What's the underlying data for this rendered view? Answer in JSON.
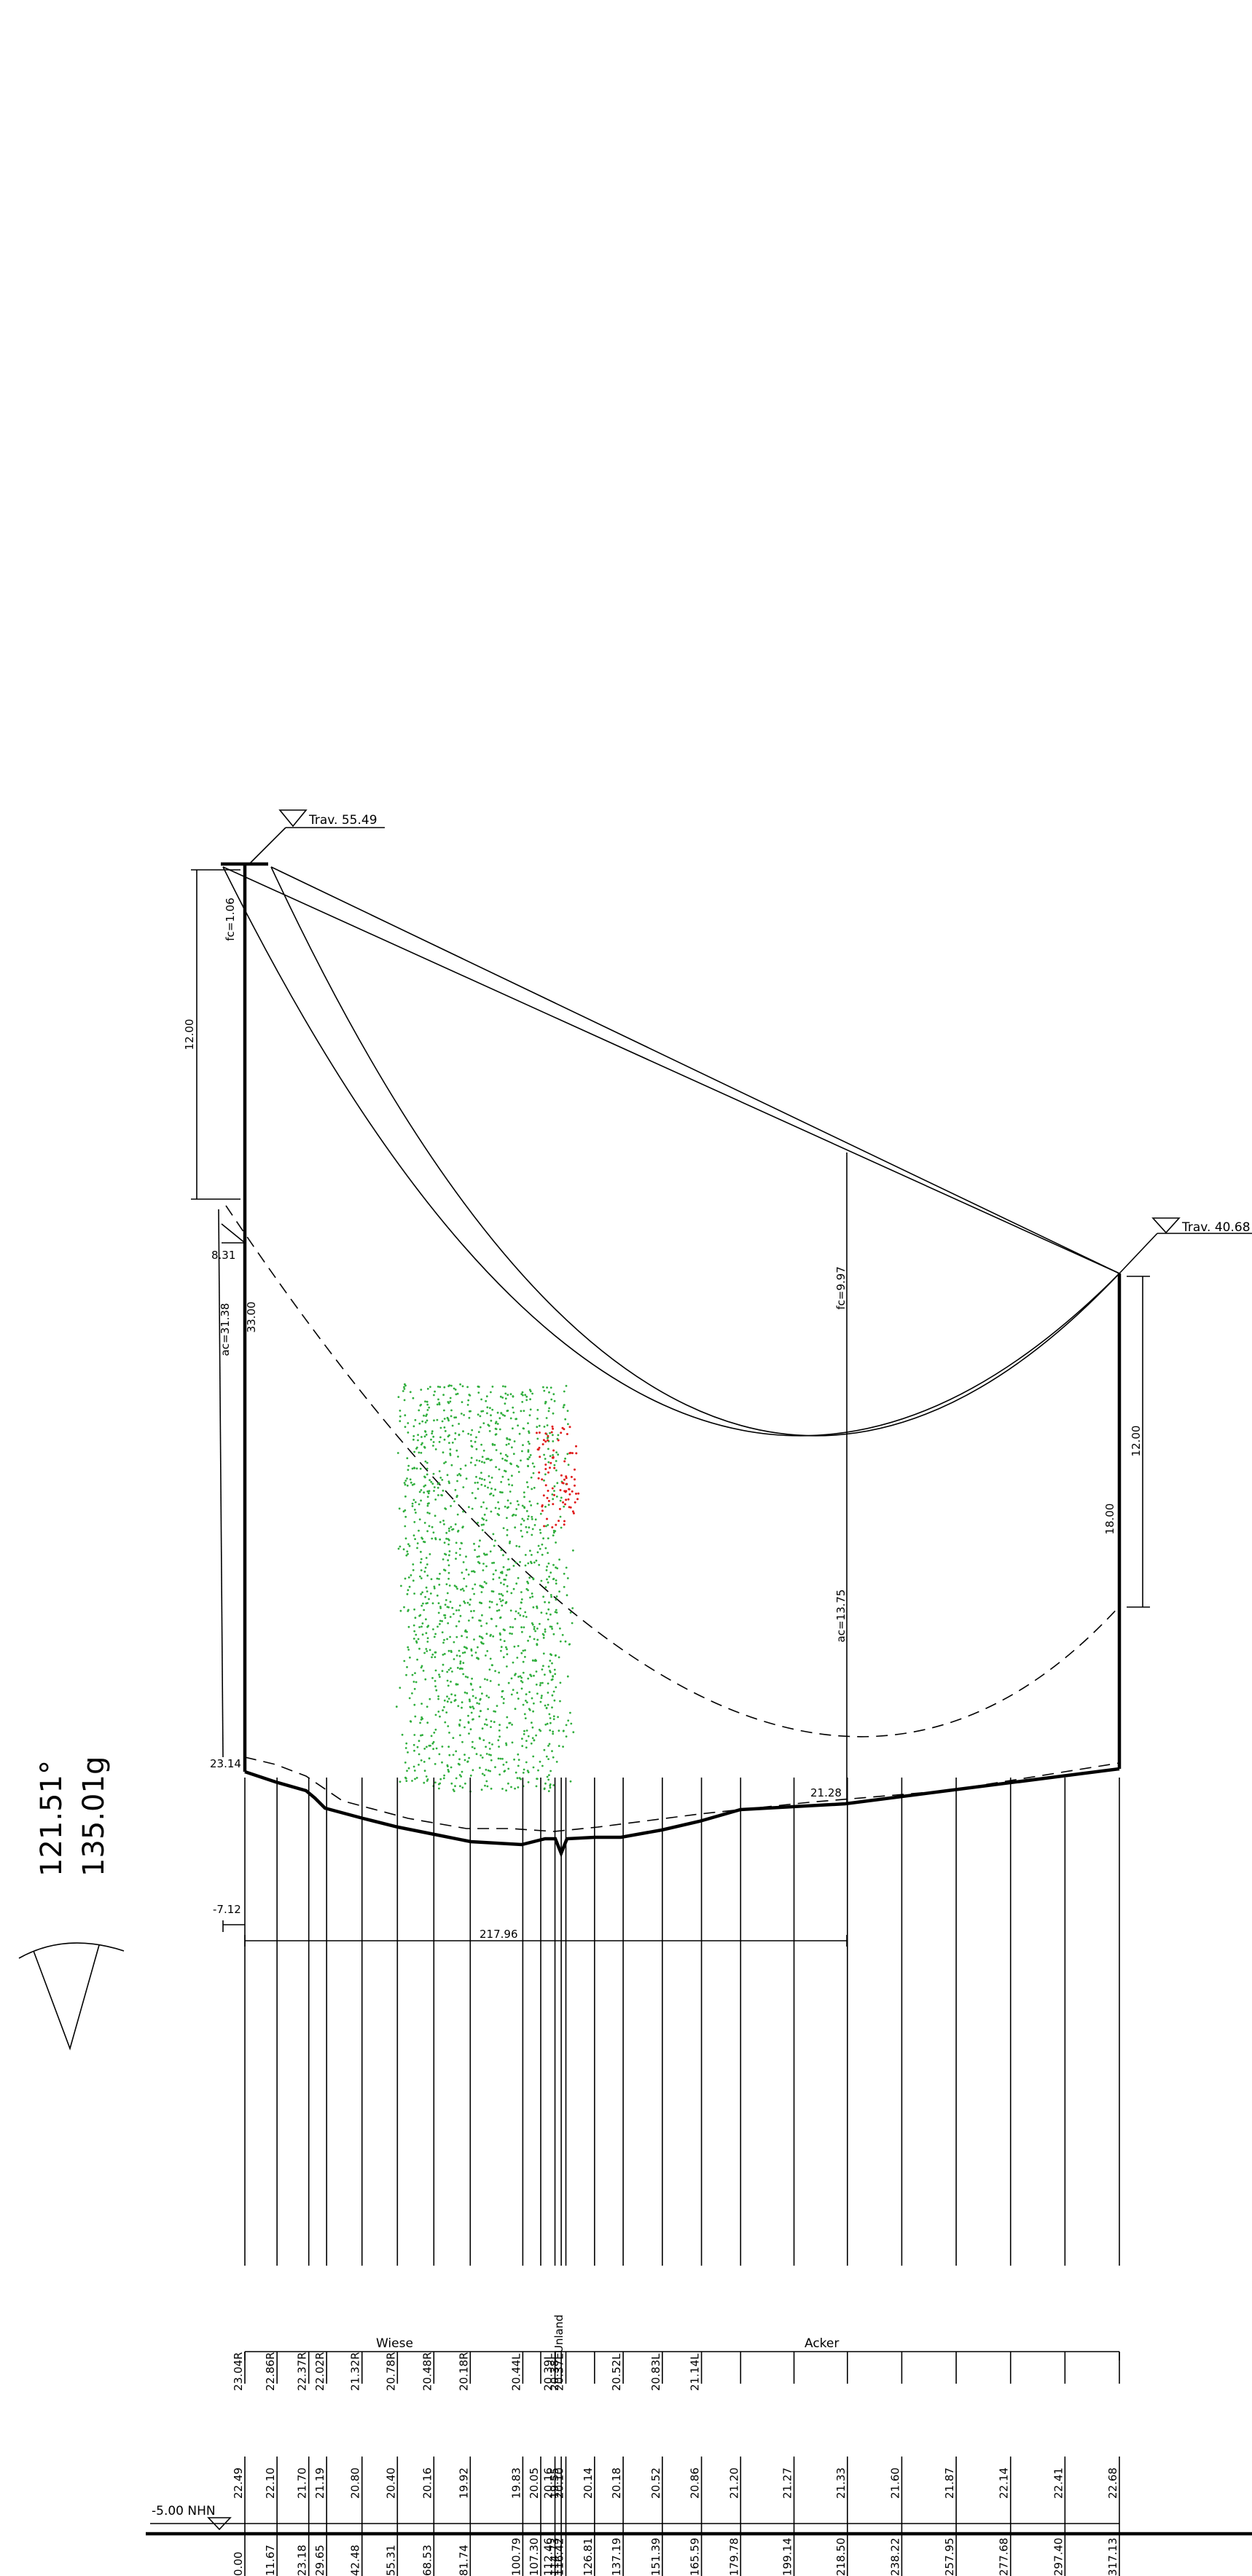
{
  "towers": {
    "left": {
      "label": "Trav. 55.49"
    },
    "right": {
      "label": "Trav. 40.68"
    }
  },
  "dimensions": {
    "left_12": "12.00",
    "fc_left": "fc=1.06",
    "ac_left": "ac=31.38",
    "left_33": "33.00",
    "left_831": "8.31",
    "left_2314": "23.14",
    "fc_mid": "fc=9.97",
    "ac_mid": "ac=13.75",
    "mid_2128": "21.28",
    "right_12": "12.00",
    "right_18": "18.00",
    "offset_neg": "-7.12",
    "span": "217.96"
  },
  "angle": {
    "degrees": "121.51°",
    "gon": "135.01g"
  },
  "sections": [
    {
      "name": "Wiese"
    },
    {
      "name": "Unland"
    },
    {
      "name": "Acker"
    }
  ],
  "datum_label": "-5.00 NHN",
  "stations": [
    {
      "dist": "0.00",
      "height": "22.49",
      "annot": "23.04R"
    },
    {
      "dist": "11.67",
      "height": "22.10",
      "annot": "22.86R"
    },
    {
      "dist": "23.18",
      "height": "21.70",
      "annot": "22.37R"
    },
    {
      "dist": "29.65",
      "height": "21.19",
      "annot": "22.02R"
    },
    {
      "dist": "42.48",
      "height": "20.80",
      "annot": "21.32R"
    },
    {
      "dist": "55.31",
      "height": "20.40",
      "annot": "20.78R"
    },
    {
      "dist": "68.53",
      "height": "20.16",
      "annot": "20.48R"
    },
    {
      "dist": "81.74",
      "height": "19.92",
      "annot": "20.18R"
    },
    {
      "dist": "100.79",
      "height": "19.83",
      "annot": "20.44L"
    },
    {
      "dist": "107.30",
      "height": "20.05",
      "annot": ""
    },
    {
      "dist": "112.46",
      "height": "20.16",
      "annot": "20.39L"
    },
    {
      "dist": "114.73",
      "height": "19.55",
      "annot": "20.38L"
    },
    {
      "dist": "116.42",
      "height": "20.10",
      "annot": "20.37L"
    },
    {
      "dist": "126.81",
      "height": "20.14",
      "annot": ""
    },
    {
      "dist": "137.19",
      "height": "20.18",
      "annot": "20.52L"
    },
    {
      "dist": "151.39",
      "height": "20.52",
      "annot": "20.83L"
    },
    {
      "dist": "165.59",
      "height": "20.86",
      "annot": "21.14L"
    },
    {
      "dist": "179.78",
      "height": "21.20",
      "annot": ""
    },
    {
      "dist": "199.14",
      "height": "21.27",
      "annot": ""
    },
    {
      "dist": "218.50",
      "height": "21.33",
      "annot": ""
    },
    {
      "dist": "238.22",
      "height": "21.60",
      "annot": ""
    },
    {
      "dist": "257.95",
      "height": "21.87",
      "annot": ""
    },
    {
      "dist": "277.68",
      "height": "22.14",
      "annot": ""
    },
    {
      "dist": "297.40",
      "height": "22.41",
      "annot": ""
    },
    {
      "dist": "317.13",
      "height": "22.68",
      "annot": ""
    }
  ],
  "colors": {
    "vegetation": "#2fae3c",
    "conflict": "#e01b1b",
    "line": "#000000"
  }
}
